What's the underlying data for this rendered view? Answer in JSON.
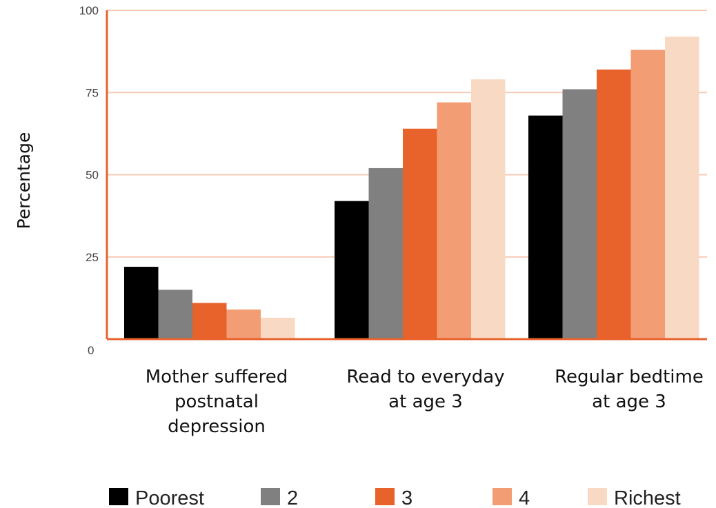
{
  "chart_data": {
    "type": "bar",
    "ylabel": "Percentage",
    "xlabel": "",
    "ylim": [
      0,
      100
    ],
    "yticks": [
      0,
      25,
      50,
      75,
      100
    ],
    "grid": true,
    "legend_position": "bottom",
    "categories": [
      [
        "Mother suffered",
        "postnatal",
        "depression"
      ],
      [
        "Read to everyday",
        "at age 3"
      ],
      [
        "Regular bedtime",
        "at age 3"
      ]
    ],
    "series": [
      {
        "name": "Poorest",
        "color": "#000000",
        "values": [
          22,
          42,
          68
        ]
      },
      {
        "name": "2",
        "color": "#808080",
        "values": [
          15,
          52,
          76
        ]
      },
      {
        "name": "3",
        "color": "#e8622c",
        "values": [
          11,
          64,
          82
        ]
      },
      {
        "name": "4",
        "color": "#f29d74",
        "values": [
          9,
          72,
          88
        ]
      },
      {
        "name": "Richest",
        "color": "#f8d9c4",
        "values": [
          6.5,
          79,
          92
        ]
      }
    ],
    "axis_color": "#e8622c",
    "grid_color": "#f7c9b3"
  }
}
